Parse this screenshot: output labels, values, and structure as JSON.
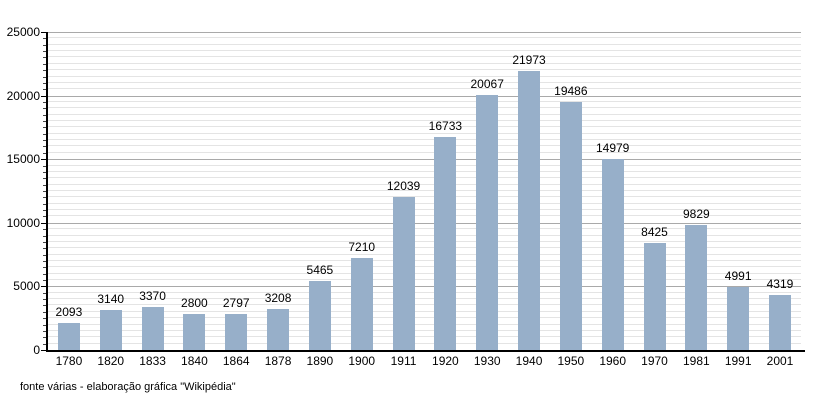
{
  "footer": {
    "source_text": "fonte várias - elaboração gráfica \"Wikipédia\""
  },
  "chart_data": {
    "type": "bar",
    "title": "",
    "xlabel": "",
    "ylabel": "",
    "categories": [
      "1780",
      "1820",
      "1833",
      "1840",
      "1864",
      "1878",
      "1890",
      "1900",
      "1911",
      "1920",
      "1930",
      "1940",
      "1950",
      "1960",
      "1970",
      "1981",
      "1991",
      "2001"
    ],
    "values": [
      2093,
      3140,
      3370,
      2800,
      2797,
      3208,
      5465,
      7210,
      12039,
      16733,
      20067,
      21973,
      19486,
      14979,
      8425,
      9829,
      4991,
      4319
    ],
    "value_labels_shown": true,
    "ylim": [
      0,
      25000
    ],
    "y_major_step": 5000,
    "y_minor_step": 500,
    "y_tick_labels": [
      "0",
      "5000",
      "10000",
      "15000",
      "20000",
      "25000"
    ],
    "grid": true,
    "legend_position": "none",
    "colors": {
      "bar_fill": "#97AFC9",
      "major_gridline": "#A9A9A9",
      "minor_gridline": "#E4E4E4",
      "axis": "#000000",
      "text": "#000000",
      "background": "#FFFFFF"
    }
  }
}
